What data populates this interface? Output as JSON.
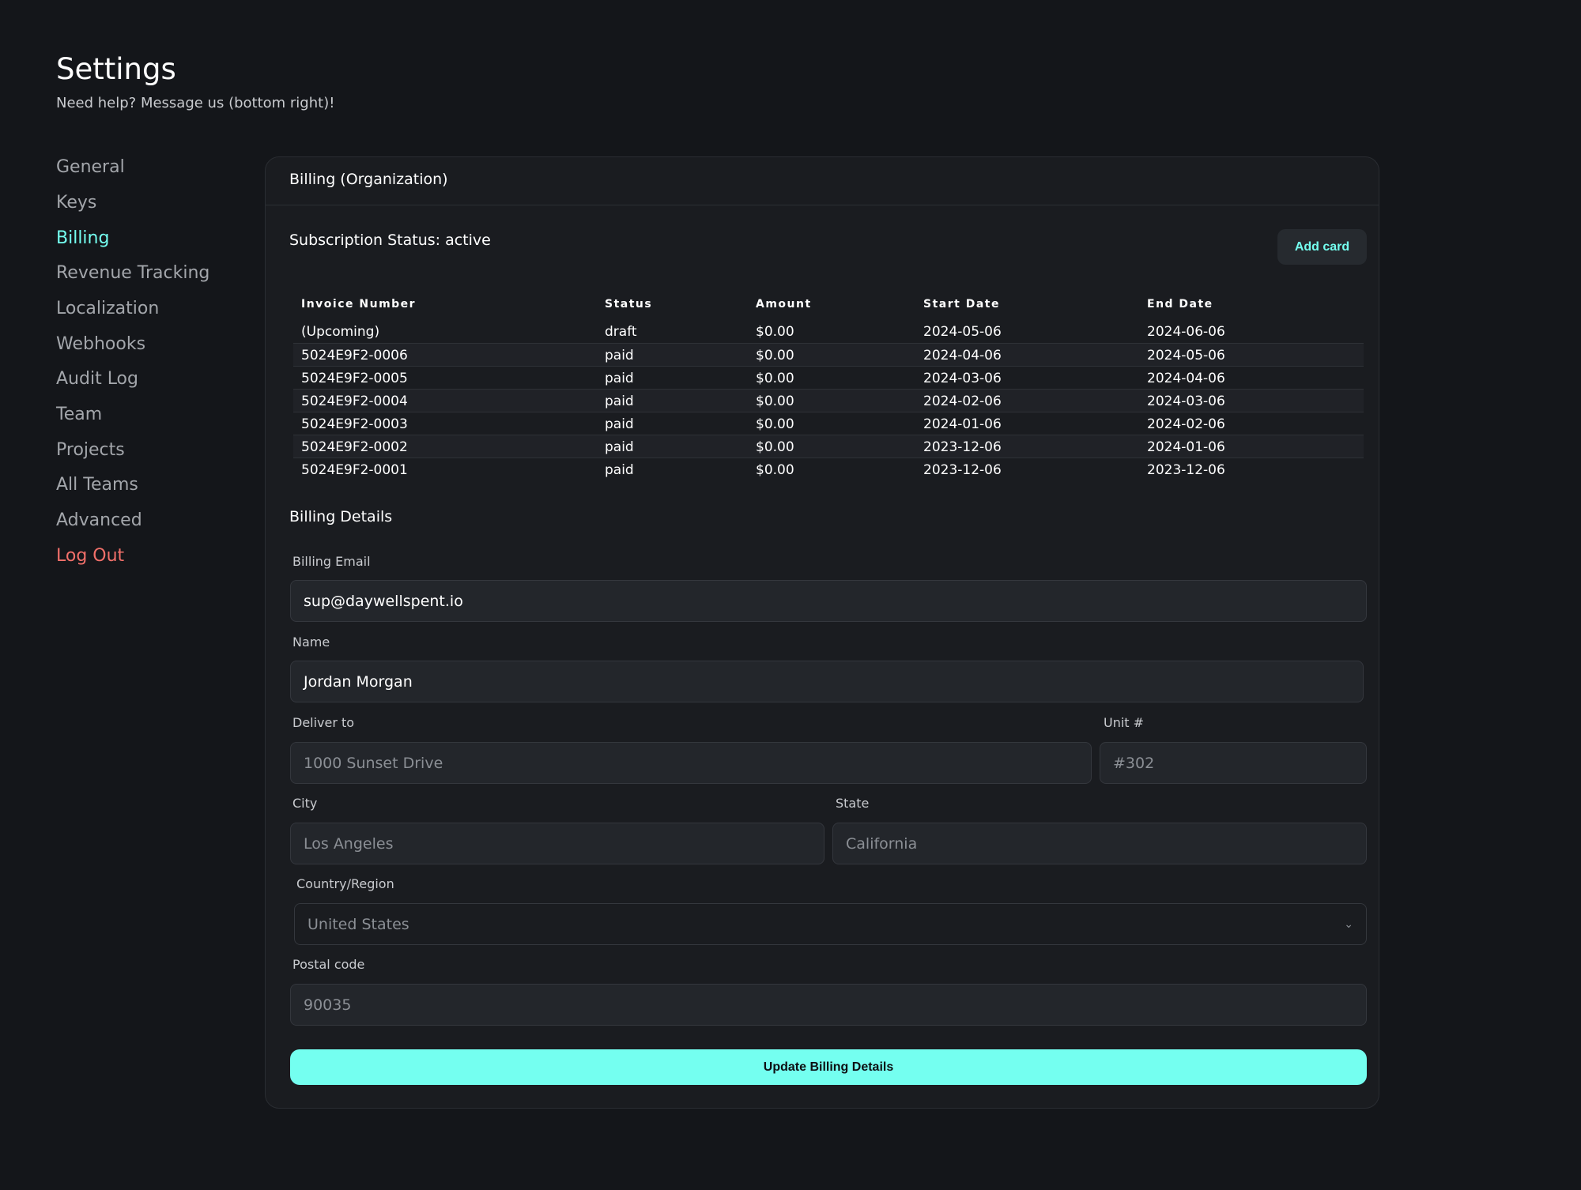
{
  "header": {
    "title": "Settings",
    "subtitle": "Need help? Message us (bottom right)!"
  },
  "sidebar": {
    "items": [
      {
        "label": "General"
      },
      {
        "label": "Keys"
      },
      {
        "label": "Billing",
        "active": true
      },
      {
        "label": "Revenue Tracking"
      },
      {
        "label": "Localization"
      },
      {
        "label": "Webhooks"
      },
      {
        "label": "Audit Log"
      },
      {
        "label": "Team"
      },
      {
        "label": "Projects"
      },
      {
        "label": "All Teams"
      },
      {
        "label": "Advanced"
      },
      {
        "label": "Log Out"
      }
    ]
  },
  "card": {
    "title": "Billing (Organization)",
    "subscription_status": "Subscription Status: active",
    "add_card_label": "Add card",
    "table": {
      "columns": [
        "Invoice Number",
        "Status",
        "Amount",
        "Start Date",
        "End Date"
      ],
      "rows": [
        [
          "(Upcoming)",
          "draft",
          "$0.00",
          "2024-05-06",
          "2024-06-06"
        ],
        [
          "5024E9F2-0006",
          "paid",
          "$0.00",
          "2024-04-06",
          "2024-05-06"
        ],
        [
          "5024E9F2-0005",
          "paid",
          "$0.00",
          "2024-03-06",
          "2024-04-06"
        ],
        [
          "5024E9F2-0004",
          "paid",
          "$0.00",
          "2024-02-06",
          "2024-03-06"
        ],
        [
          "5024E9F2-0003",
          "paid",
          "$0.00",
          "2024-01-06",
          "2024-02-06"
        ],
        [
          "5024E9F2-0002",
          "paid",
          "$0.00",
          "2023-12-06",
          "2024-01-06"
        ],
        [
          "5024E9F2-0001",
          "paid",
          "$0.00",
          "2023-12-06",
          "2023-12-06"
        ]
      ]
    },
    "details_title": "Billing Details",
    "fields": {
      "email": {
        "label": "Billing Email",
        "value": "sup@daywellspent.io"
      },
      "name": {
        "label": "Name",
        "value": "Jordan Morgan"
      },
      "deliver": {
        "label": "Deliver to",
        "placeholder": "1000 Sunset Drive"
      },
      "unit": {
        "label": "Unit #",
        "placeholder": "#302"
      },
      "city": {
        "label": "City",
        "placeholder": "Los Angeles"
      },
      "state": {
        "label": "State",
        "placeholder": "California"
      },
      "country": {
        "label": "Country/Region",
        "value": "United States"
      },
      "postal": {
        "label": "Postal code",
        "placeholder": "90035"
      }
    },
    "update_label": "Update Billing Details"
  },
  "colors": {
    "accent": "#74fff0",
    "danger": "#f2706a",
    "background": "#14161a"
  }
}
